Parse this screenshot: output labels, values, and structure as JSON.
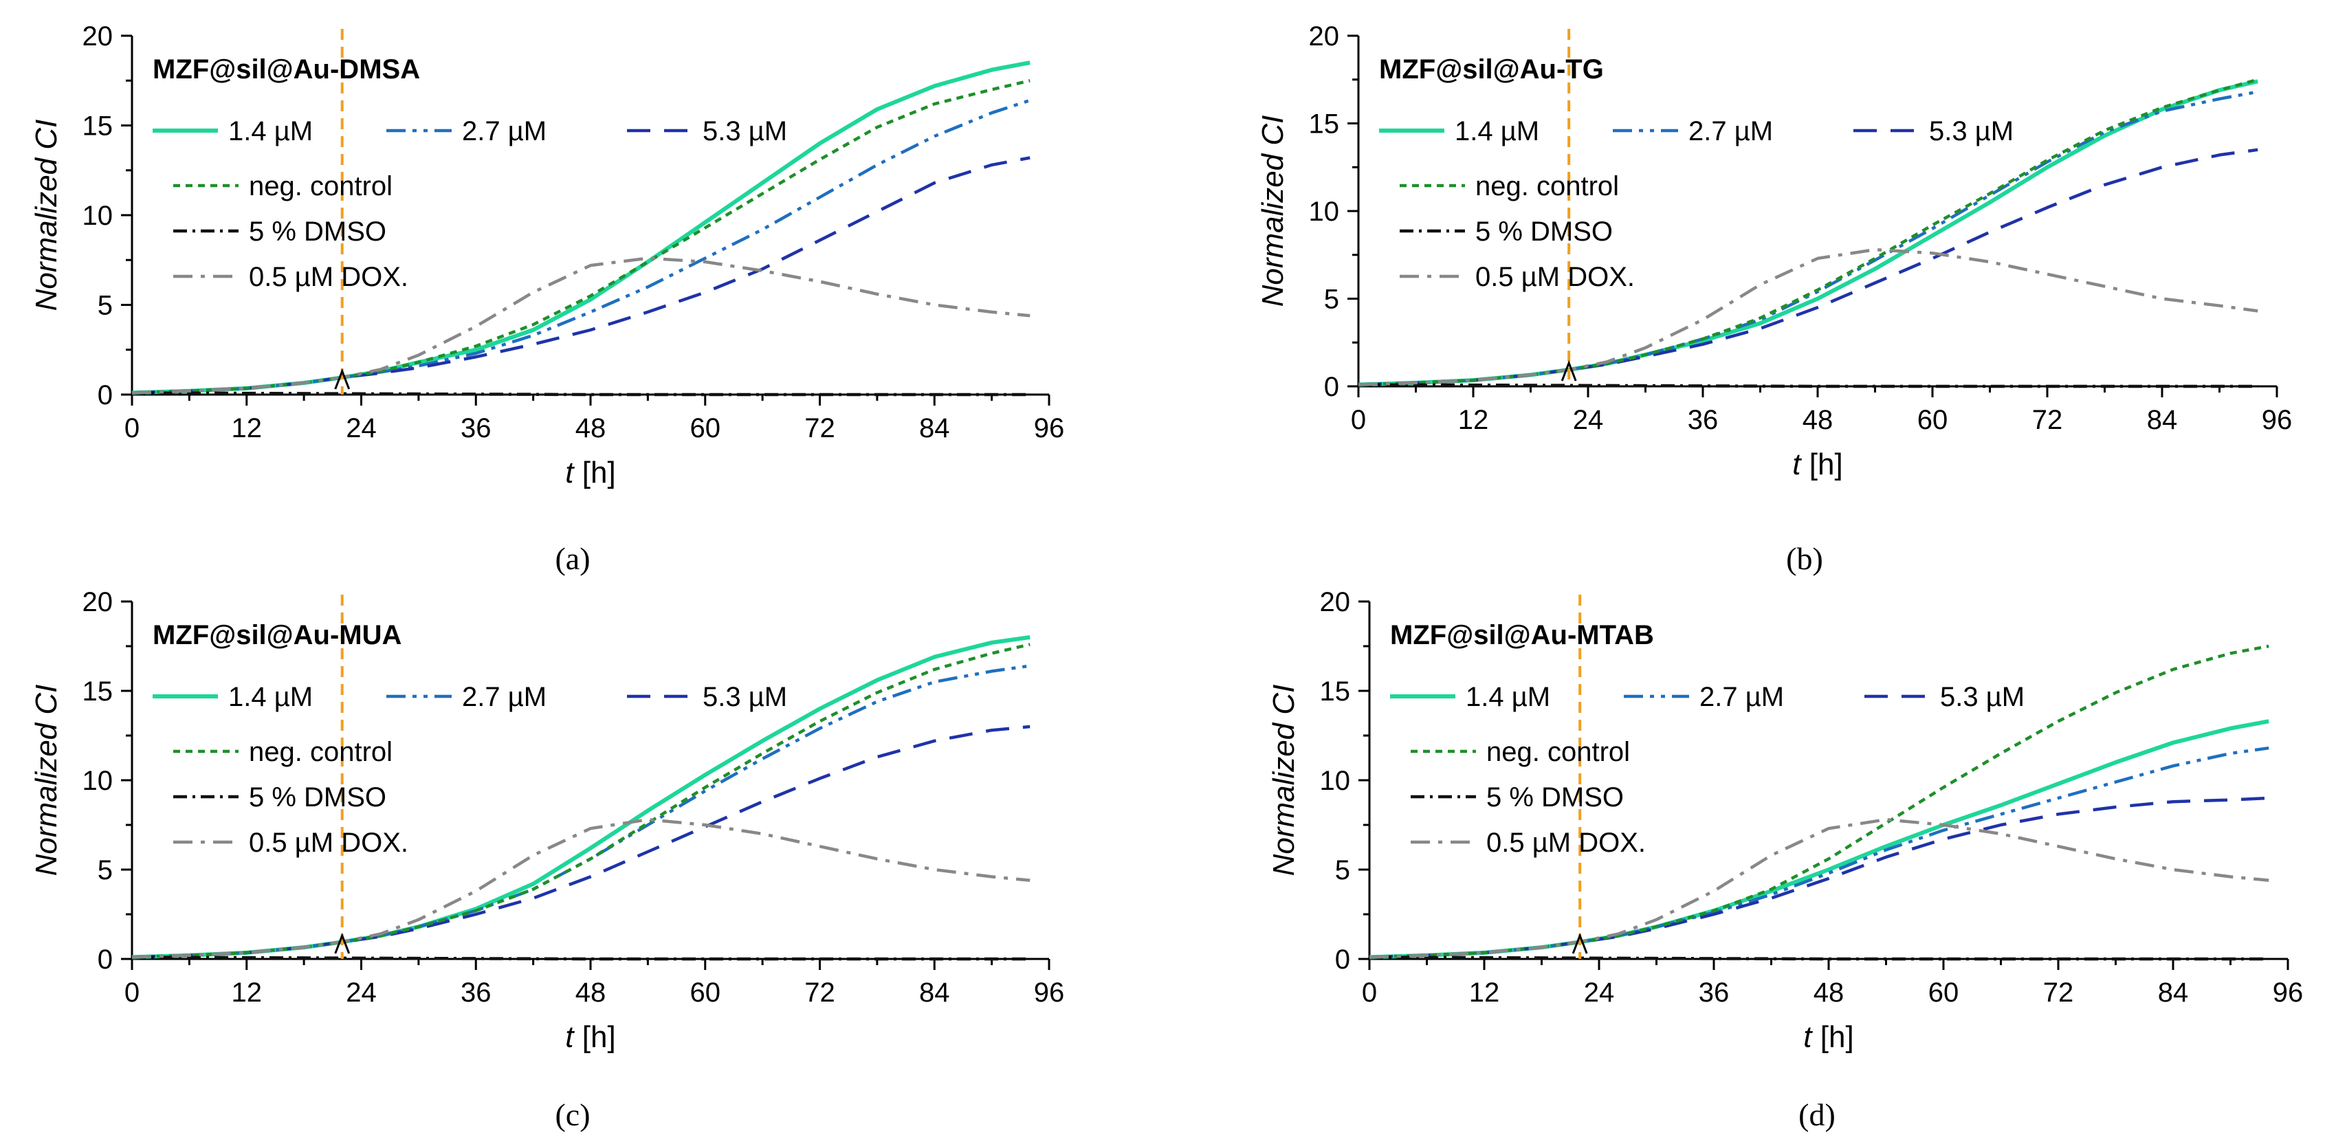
{
  "chart_data": [
    {
      "type": "line",
      "panel_label": "(a)",
      "title": "MZF@sil@Au-DMSA",
      "xlabel_var": "t",
      "xlabel_unit": " [h]",
      "ylabel": "Normalized CI",
      "xlim": [
        0,
        96
      ],
      "ylim": [
        0,
        20
      ],
      "xticks": [
        "0",
        "12",
        "24",
        "36",
        "48",
        "60",
        "72",
        "84",
        "96"
      ],
      "yticks": [
        "0",
        "5",
        "10",
        "15",
        "20"
      ],
      "marker_x": 22,
      "legend": [
        "1.4 µM",
        "2.7 µM",
        "5.3 µM",
        "neg. control",
        "5 % DMSO",
        "0.5 µM DOX."
      ],
      "series": [
        {
          "name": "1.4 µM",
          "color": "#1ed69a",
          "dash": "",
          "x": [
            0,
            6,
            12,
            18,
            22,
            26,
            30,
            36,
            42,
            48,
            54,
            60,
            66,
            72,
            78,
            84,
            90,
            94
          ],
          "y": [
            0.1,
            0.2,
            0.35,
            0.65,
            0.95,
            1.3,
            1.8,
            2.5,
            3.6,
            5.3,
            7.4,
            9.6,
            11.8,
            14.0,
            15.9,
            17.2,
            18.1,
            18.5
          ]
        },
        {
          "name": "2.7 µM",
          "color": "#1f6fbf",
          "dash": "28 10 6 10 6 10",
          "x": [
            0,
            6,
            12,
            18,
            22,
            26,
            30,
            36,
            42,
            48,
            54,
            60,
            66,
            72,
            78,
            84,
            90,
            94
          ],
          "y": [
            0.1,
            0.2,
            0.35,
            0.65,
            0.95,
            1.25,
            1.6,
            2.3,
            3.3,
            4.6,
            6.0,
            7.6,
            9.2,
            11.0,
            12.8,
            14.4,
            15.7,
            16.4
          ]
        },
        {
          "name": "5.3 µM",
          "color": "#1f33a8",
          "dash": "34 20",
          "x": [
            0,
            6,
            12,
            18,
            22,
            26,
            30,
            36,
            42,
            48,
            54,
            60,
            66,
            72,
            78,
            84,
            90,
            94
          ],
          "y": [
            0.1,
            0.2,
            0.35,
            0.65,
            0.95,
            1.2,
            1.5,
            2.1,
            2.8,
            3.6,
            4.6,
            5.7,
            7.0,
            8.6,
            10.2,
            11.8,
            12.8,
            13.2
          ]
        },
        {
          "name": "neg. control",
          "color": "#1f8f2a",
          "dash": "10 8",
          "x": [
            0,
            6,
            12,
            18,
            22,
            26,
            30,
            36,
            42,
            48,
            54,
            60,
            66,
            72,
            78,
            84,
            90,
            94
          ],
          "y": [
            0.1,
            0.2,
            0.35,
            0.65,
            0.95,
            1.3,
            1.8,
            2.7,
            3.9,
            5.5,
            7.4,
            9.3,
            11.2,
            13.1,
            14.9,
            16.2,
            17.0,
            17.5
          ]
        },
        {
          "name": "5 % DMSO",
          "color": "#111111",
          "dash": "20 8 4 8",
          "x": [
            0,
            22,
            48,
            72,
            94
          ],
          "y": [
            0.1,
            0.05,
            0.0,
            0.0,
            0.0
          ]
        },
        {
          "name": "0.5 µM DOX.",
          "color": "#888888",
          "dash": "28 12 6 12",
          "x": [
            0,
            6,
            12,
            18,
            22,
            26,
            30,
            36,
            42,
            48,
            54,
            60,
            66,
            72,
            78,
            84,
            90,
            94
          ],
          "y": [
            0.1,
            0.2,
            0.35,
            0.65,
            0.95,
            1.4,
            2.2,
            3.8,
            5.7,
            7.2,
            7.6,
            7.4,
            6.9,
            6.3,
            5.6,
            5.0,
            4.6,
            4.4
          ]
        }
      ]
    },
    {
      "type": "line",
      "panel_label": "(b)",
      "title": "MZF@sil@Au-TG",
      "xlabel_var": "t",
      "xlabel_unit": " [h]",
      "ylabel": "Normalized CI",
      "xlim": [
        0,
        96
      ],
      "ylim": [
        0,
        20
      ],
      "xticks": [
        "0",
        "12",
        "24",
        "36",
        "48",
        "60",
        "72",
        "84",
        "96"
      ],
      "yticks": [
        "0",
        "5",
        "10",
        "15",
        "20"
      ],
      "marker_x": 22,
      "legend": [
        "1.4 µM",
        "2.7 µM",
        "5.3 µM",
        "neg. control",
        "5 % DMSO",
        "0.5 µM DOX."
      ],
      "series": [
        {
          "name": "1.4 µM",
          "color": "#1ed69a",
          "dash": "",
          "x": [
            0,
            6,
            12,
            18,
            22,
            26,
            30,
            36,
            42,
            48,
            54,
            60,
            66,
            72,
            78,
            84,
            90,
            94
          ],
          "y": [
            0.1,
            0.2,
            0.35,
            0.65,
            0.95,
            1.3,
            1.8,
            2.6,
            3.6,
            5.0,
            6.7,
            8.6,
            10.5,
            12.5,
            14.3,
            15.8,
            16.9,
            17.4
          ]
        },
        {
          "name": "2.7 µM",
          "color": "#1f6fbf",
          "dash": "28 10 6 10 6 10",
          "x": [
            0,
            6,
            12,
            18,
            22,
            26,
            30,
            36,
            42,
            48,
            54,
            60,
            66,
            72,
            78,
            84,
            90,
            94
          ],
          "y": [
            0.1,
            0.2,
            0.35,
            0.65,
            0.95,
            1.3,
            1.8,
            2.7,
            3.8,
            5.4,
            7.2,
            9.0,
            10.9,
            12.8,
            14.5,
            15.7,
            16.4,
            16.8
          ]
        },
        {
          "name": "5.3 µM",
          "color": "#1f33a8",
          "dash": "34 20",
          "x": [
            0,
            6,
            12,
            18,
            22,
            26,
            30,
            36,
            42,
            48,
            54,
            60,
            66,
            72,
            78,
            84,
            90,
            94
          ],
          "y": [
            0.1,
            0.2,
            0.35,
            0.65,
            0.95,
            1.25,
            1.7,
            2.4,
            3.3,
            4.5,
            5.9,
            7.3,
            8.8,
            10.2,
            11.5,
            12.5,
            13.2,
            13.5
          ]
        },
        {
          "name": "neg. control",
          "color": "#1f8f2a",
          "dash": "10 8",
          "x": [
            0,
            6,
            12,
            18,
            22,
            26,
            30,
            36,
            42,
            48,
            54,
            60,
            66,
            72,
            78,
            84,
            90,
            94
          ],
          "y": [
            0.1,
            0.2,
            0.35,
            0.65,
            0.95,
            1.3,
            1.8,
            2.7,
            3.9,
            5.5,
            7.3,
            9.2,
            11.0,
            12.9,
            14.6,
            15.9,
            16.9,
            17.5
          ]
        },
        {
          "name": "5 % DMSO",
          "color": "#111111",
          "dash": "20 8 4 8",
          "x": [
            0,
            22,
            48,
            72,
            94
          ],
          "y": [
            0.1,
            0.05,
            0.0,
            0.0,
            0.0
          ]
        },
        {
          "name": "0.5 µM DOX.",
          "color": "#888888",
          "dash": "28 12 6 12",
          "x": [
            0,
            6,
            12,
            18,
            22,
            26,
            30,
            36,
            42,
            48,
            54,
            60,
            66,
            72,
            78,
            84,
            90,
            94
          ],
          "y": [
            0.1,
            0.2,
            0.35,
            0.65,
            0.95,
            1.4,
            2.2,
            3.8,
            5.8,
            7.3,
            7.8,
            7.6,
            7.1,
            6.4,
            5.7,
            5.0,
            4.6,
            4.3
          ]
        }
      ]
    },
    {
      "type": "line",
      "panel_label": "(c)",
      "title": "MZF@sil@Au-MUA",
      "xlabel_var": "t",
      "xlabel_unit": " [h]",
      "ylabel": "Normalized CI",
      "xlim": [
        0,
        96
      ],
      "ylim": [
        0,
        20
      ],
      "xticks": [
        "0",
        "12",
        "24",
        "36",
        "48",
        "60",
        "72",
        "84",
        "96"
      ],
      "yticks": [
        "0",
        "5",
        "10",
        "15",
        "20"
      ],
      "marker_x": 22,
      "legend": [
        "1.4 µM",
        "2.7 µM",
        "5.3 µM",
        "neg. control",
        "5 % DMSO",
        "0.5 µM DOX."
      ],
      "series": [
        {
          "name": "1.4 µM",
          "color": "#1ed69a",
          "dash": "",
          "x": [
            0,
            6,
            12,
            18,
            22,
            26,
            30,
            36,
            42,
            48,
            54,
            60,
            66,
            72,
            78,
            84,
            90,
            94
          ],
          "y": [
            0.1,
            0.2,
            0.35,
            0.65,
            0.95,
            1.3,
            1.8,
            2.8,
            4.2,
            6.2,
            8.3,
            10.3,
            12.2,
            14.0,
            15.6,
            16.9,
            17.7,
            18.0
          ]
        },
        {
          "name": "2.7 µM",
          "color": "#1f6fbf",
          "dash": "28 10 6 10 6 10",
          "x": [
            0,
            6,
            12,
            18,
            22,
            26,
            30,
            36,
            42,
            48,
            54,
            60,
            66,
            72,
            78,
            84,
            90,
            94
          ],
          "y": [
            0.1,
            0.2,
            0.35,
            0.65,
            0.95,
            1.3,
            1.8,
            2.7,
            3.9,
            5.6,
            7.5,
            9.4,
            11.2,
            12.9,
            14.4,
            15.5,
            16.1,
            16.4
          ]
        },
        {
          "name": "5.3 µM",
          "color": "#1f33a8",
          "dash": "34 20",
          "x": [
            0,
            6,
            12,
            18,
            22,
            26,
            30,
            36,
            42,
            48,
            54,
            60,
            66,
            72,
            78,
            84,
            90,
            94
          ],
          "y": [
            0.1,
            0.2,
            0.35,
            0.65,
            0.95,
            1.25,
            1.7,
            2.5,
            3.4,
            4.6,
            6.0,
            7.4,
            8.8,
            10.1,
            11.3,
            12.2,
            12.8,
            13.0
          ]
        },
        {
          "name": "neg. control",
          "color": "#1f8f2a",
          "dash": "10 8",
          "x": [
            0,
            6,
            12,
            18,
            22,
            26,
            30,
            36,
            42,
            48,
            54,
            60,
            66,
            72,
            78,
            84,
            90,
            94
          ],
          "y": [
            0.1,
            0.2,
            0.35,
            0.65,
            0.95,
            1.3,
            1.8,
            2.7,
            3.9,
            5.6,
            7.6,
            9.6,
            11.5,
            13.3,
            14.9,
            16.2,
            17.1,
            17.6
          ]
        },
        {
          "name": "5 % DMSO",
          "color": "#111111",
          "dash": "20 8 4 8",
          "x": [
            0,
            22,
            48,
            72,
            94
          ],
          "y": [
            0.1,
            0.05,
            0.0,
            0.0,
            0.0
          ]
        },
        {
          "name": "0.5 µM DOX.",
          "color": "#888888",
          "dash": "28 12 6 12",
          "x": [
            0,
            6,
            12,
            18,
            22,
            26,
            30,
            36,
            42,
            48,
            54,
            60,
            66,
            72,
            78,
            84,
            90,
            94
          ],
          "y": [
            0.1,
            0.2,
            0.35,
            0.65,
            0.95,
            1.4,
            2.2,
            3.8,
            5.8,
            7.3,
            7.8,
            7.5,
            7.0,
            6.3,
            5.6,
            5.0,
            4.6,
            4.4
          ]
        }
      ]
    },
    {
      "type": "line",
      "panel_label": "(d)",
      "title": "MZF@sil@Au-MTAB",
      "xlabel_var": "t",
      "xlabel_unit": " [h]",
      "ylabel": "Normalized CI",
      "xlim": [
        0,
        96
      ],
      "ylim": [
        0,
        20
      ],
      "xticks": [
        "0",
        "12",
        "24",
        "36",
        "48",
        "60",
        "72",
        "84",
        "96"
      ],
      "yticks": [
        "0",
        "5",
        "10",
        "15",
        "20"
      ],
      "marker_x": 22,
      "legend": [
        "1.4 µM",
        "2.7 µM",
        "5.3 µM",
        "neg. control",
        "5 % DMSO",
        "0.5 µM DOX."
      ],
      "series": [
        {
          "name": "1.4 µM",
          "color": "#1ed69a",
          "dash": "",
          "x": [
            0,
            6,
            12,
            18,
            22,
            26,
            30,
            36,
            42,
            48,
            54,
            60,
            66,
            72,
            78,
            84,
            90,
            94
          ],
          "y": [
            0.1,
            0.2,
            0.35,
            0.65,
            0.95,
            1.3,
            1.8,
            2.7,
            3.8,
            5.0,
            6.3,
            7.5,
            8.6,
            9.8,
            11.0,
            12.1,
            12.9,
            13.3
          ]
        },
        {
          "name": "2.7 µM",
          "color": "#1f6fbf",
          "dash": "28 10 6 10 6 10",
          "x": [
            0,
            6,
            12,
            18,
            22,
            26,
            30,
            36,
            42,
            48,
            54,
            60,
            66,
            72,
            78,
            84,
            90,
            94
          ],
          "y": [
            0.1,
            0.2,
            0.35,
            0.65,
            0.95,
            1.3,
            1.8,
            2.6,
            3.6,
            4.8,
            6.1,
            7.2,
            8.1,
            9.0,
            9.9,
            10.8,
            11.5,
            11.8
          ]
        },
        {
          "name": "5.3 µM",
          "color": "#1f33a8",
          "dash": "34 20",
          "x": [
            0,
            6,
            12,
            18,
            22,
            26,
            30,
            36,
            42,
            48,
            54,
            60,
            66,
            72,
            78,
            84,
            90,
            94
          ],
          "y": [
            0.1,
            0.2,
            0.35,
            0.65,
            0.95,
            1.25,
            1.7,
            2.5,
            3.4,
            4.5,
            5.7,
            6.7,
            7.5,
            8.1,
            8.5,
            8.8,
            8.9,
            9.0
          ]
        },
        {
          "name": "neg. control",
          "color": "#1f8f2a",
          "dash": "10 8",
          "x": [
            0,
            6,
            12,
            18,
            22,
            26,
            30,
            36,
            42,
            48,
            54,
            60,
            66,
            72,
            78,
            84,
            90,
            94
          ],
          "y": [
            0.1,
            0.2,
            0.35,
            0.65,
            0.95,
            1.3,
            1.8,
            2.7,
            3.9,
            5.6,
            7.6,
            9.6,
            11.5,
            13.3,
            14.9,
            16.2,
            17.1,
            17.5
          ]
        },
        {
          "name": "5 % DMSO",
          "color": "#111111",
          "dash": "20 8 4 8",
          "x": [
            0,
            22,
            48,
            72,
            94
          ],
          "y": [
            0.1,
            0.05,
            0.0,
            0.0,
            0.0
          ]
        },
        {
          "name": "0.5 µM DOX.",
          "color": "#888888",
          "dash": "28 12 6 12",
          "x": [
            0,
            6,
            12,
            18,
            22,
            26,
            30,
            36,
            42,
            48,
            54,
            60,
            66,
            72,
            78,
            84,
            90,
            94
          ],
          "y": [
            0.1,
            0.2,
            0.35,
            0.65,
            0.95,
            1.4,
            2.2,
            3.8,
            5.8,
            7.3,
            7.8,
            7.5,
            7.0,
            6.3,
            5.6,
            5.0,
            4.6,
            4.4
          ]
        }
      ]
    }
  ]
}
